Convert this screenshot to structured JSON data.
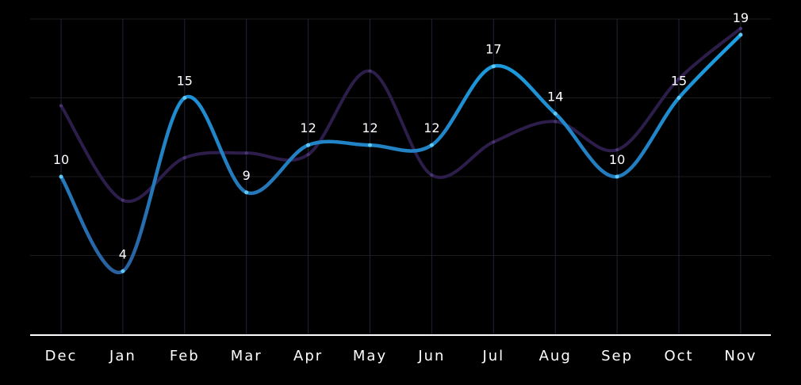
{
  "chart_data": {
    "type": "line",
    "categories": [
      "Dec",
      "Jan",
      "Feb",
      "Mar",
      "Apr",
      "May",
      "Jun",
      "Jul",
      "Aug",
      "Sep",
      "Oct",
      "Nov"
    ],
    "series": [
      {
        "values": [
          10,
          4,
          15,
          9,
          12,
          12,
          12,
          17,
          14,
          10,
          15,
          19
        ],
        "color": "#1aa3e8",
        "color_end": "#2a5f9e",
        "data_labels": true
      },
      {
        "values": [
          14.5,
          8.5,
          11.2,
          11.5,
          11.4,
          16.7,
          10.1,
          12.2,
          13.5,
          11.7,
          16.2,
          19.4
        ],
        "color": "#2d1d4a",
        "data_labels": false
      }
    ],
    "ylim": [
      0,
      20
    ],
    "grid": true,
    "legend": "none",
    "colors": {
      "background": "#000000",
      "grid": "#1c1c1c",
      "vertical_guides": "#1e2438",
      "axis": "#ffffff",
      "text": "#ffffff"
    }
  }
}
